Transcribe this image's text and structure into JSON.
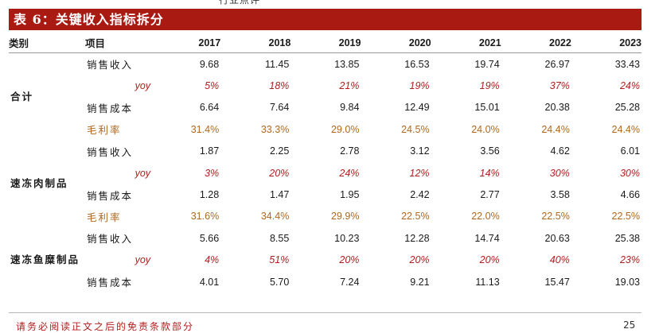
{
  "top_fragment": "行业点评",
  "title": "表 6：关键收入指标拆分",
  "header": {
    "category_label": "类别",
    "item_label": "项目",
    "years": [
      "2017",
      "2018",
      "2019",
      "2020",
      "2021",
      "2022",
      "2023"
    ]
  },
  "groups": [
    {
      "category": "合计",
      "rows": [
        {
          "label": "销售收入",
          "kind": "normal",
          "values": [
            "9.68",
            "11.45",
            "13.85",
            "16.53",
            "19.74",
            "26.97",
            "33.43"
          ]
        },
        {
          "label": "yoy",
          "kind": "yoy",
          "values": [
            "5%",
            "18%",
            "21%",
            "19%",
            "19%",
            "37%",
            "24%"
          ]
        },
        {
          "label": "销售成本",
          "kind": "normal",
          "values": [
            "6.64",
            "7.64",
            "9.84",
            "12.49",
            "15.01",
            "20.38",
            "25.28"
          ]
        },
        {
          "label": "毛利率",
          "kind": "margin",
          "values": [
            "31.4%",
            "33.3%",
            "29.0%",
            "24.5%",
            "24.0%",
            "24.4%",
            "24.4%"
          ]
        }
      ]
    },
    {
      "category": "速冻肉制品",
      "rows": [
        {
          "label": "销售收入",
          "kind": "normal",
          "values": [
            "1.87",
            "2.25",
            "2.78",
            "3.12",
            "3.56",
            "4.62",
            "6.01"
          ]
        },
        {
          "label": "yoy",
          "kind": "yoy",
          "values": [
            "3%",
            "20%",
            "24%",
            "12%",
            "14%",
            "30%",
            "30%"
          ]
        },
        {
          "label": "销售成本",
          "kind": "normal",
          "values": [
            "1.28",
            "1.47",
            "1.95",
            "2.42",
            "2.77",
            "3.58",
            "4.66"
          ]
        },
        {
          "label": "毛利率",
          "kind": "margin",
          "values": [
            "31.6%",
            "34.4%",
            "29.9%",
            "22.5%",
            "22.0%",
            "22.5%",
            "22.5%"
          ]
        }
      ]
    },
    {
      "category": "速冻鱼糜制品",
      "rows": [
        {
          "label": "销售收入",
          "kind": "normal",
          "values": [
            "5.66",
            "8.55",
            "10.23",
            "12.28",
            "14.74",
            "20.63",
            "25.38"
          ]
        },
        {
          "label": "yoy",
          "kind": "yoy",
          "values": [
            "4%",
            "51%",
            "20%",
            "20%",
            "20%",
            "40%",
            "23%"
          ]
        },
        {
          "label": "销售成本",
          "kind": "normal",
          "values": [
            "4.01",
            "5.70",
            "7.24",
            "9.21",
            "11.13",
            "15.47",
            "19.03"
          ]
        }
      ]
    }
  ],
  "footer": {
    "note": "请务必阅读正文之后的免责条款部分",
    "page": "25"
  },
  "colors": {
    "title_bg": "#a81a12",
    "yoy": "#b21d1d",
    "margin": "#b06820"
  }
}
